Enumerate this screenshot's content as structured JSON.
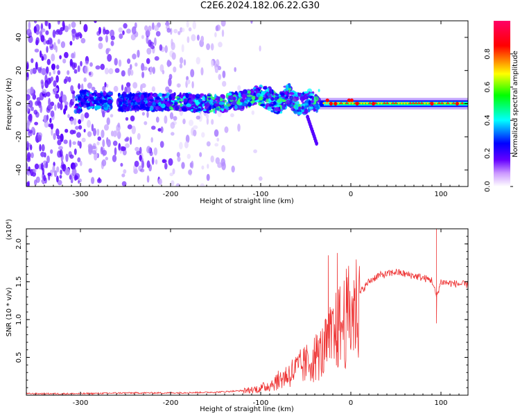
{
  "title": "C2E6.2024.182.06.22.G30",
  "chart_data": [
    {
      "type": "heatmap",
      "xlabel": "Height of straight line (km)",
      "ylabel": "Frequency (Hz)",
      "xlim": [
        -360,
        130
      ],
      "ylim": [
        -50,
        50
      ],
      "xticks": [
        -300,
        -200,
        -100,
        0,
        100
      ],
      "yticks": [
        -40,
        -20,
        0,
        20,
        40
      ],
      "colorbar": {
        "label": "Normalized spectral amplitude",
        "range": [
          0,
          1
        ],
        "ticks": [
          "0.0",
          "0.2",
          "0.4",
          "0.6",
          "0.8"
        ],
        "colormap": [
          "#ffffff",
          "#cc99ff",
          "#6600ff",
          "#0000ff",
          "#00ffff",
          "#00ff00",
          "#ffff00",
          "#ff0000",
          "#ff0066"
        ]
      },
      "band_center_hz": [
        [
          -300,
          3
        ],
        [
          -260,
          1
        ],
        [
          -200,
          1
        ],
        [
          -150,
          0
        ],
        [
          -120,
          2
        ],
        [
          -100,
          6
        ],
        [
          -90,
          3
        ],
        [
          -80,
          -1
        ],
        [
          -70,
          6
        ],
        [
          -60,
          0
        ],
        [
          -40,
          2
        ],
        [
          -20,
          1
        ],
        [
          0,
          1
        ],
        [
          50,
          0
        ],
        [
          100,
          0
        ],
        [
          130,
          0
        ]
      ],
      "annotations": [
        {
          "x": -40,
          "y": -22,
          "text": ""
        }
      ]
    },
    {
      "type": "line",
      "xlabel": "Height of straight line (km)",
      "ylabel": "SNR (10 * v/v)",
      "y_multiplier": "(x10⁴)",
      "xlim": [
        -360,
        130
      ],
      "ylim": [
        0,
        2.2
      ],
      "xticks": [
        -300,
        -200,
        -100,
        0,
        100
      ],
      "yticks": [
        0.5,
        1.0,
        1.5,
        2.0
      ],
      "ytick_labels": [
        "0.5",
        "1.0",
        "1.5",
        "2.0"
      ],
      "color": "#ee3333",
      "series": [
        {
          "values_x": [
            -360,
            -300,
            -250,
            -200,
            -150,
            -120,
            -100,
            -90,
            -80,
            -70,
            -60,
            -50,
            -40,
            -30,
            -20,
            -10,
            0,
            10,
            20,
            30,
            40,
            50,
            60,
            70,
            80,
            90,
            95,
            100,
            110,
            120,
            130
          ],
          "values_y": [
            0.02,
            0.02,
            0.03,
            0.03,
            0.04,
            0.06,
            0.1,
            0.15,
            0.22,
            0.3,
            0.38,
            0.45,
            0.55,
            0.65,
            0.85,
            1.05,
            1.2,
            1.35,
            1.5,
            1.58,
            1.6,
            1.63,
            1.6,
            1.58,
            1.55,
            1.52,
            1.3,
            1.5,
            1.48,
            1.47,
            1.46
          ]
        }
      ],
      "spikes": [
        {
          "x": -25,
          "y": 1.85
        },
        {
          "x": -15,
          "y": 1.88
        },
        {
          "x": 95,
          "y": 2.2
        },
        {
          "x": 95,
          "y": 0.95
        }
      ]
    }
  ]
}
